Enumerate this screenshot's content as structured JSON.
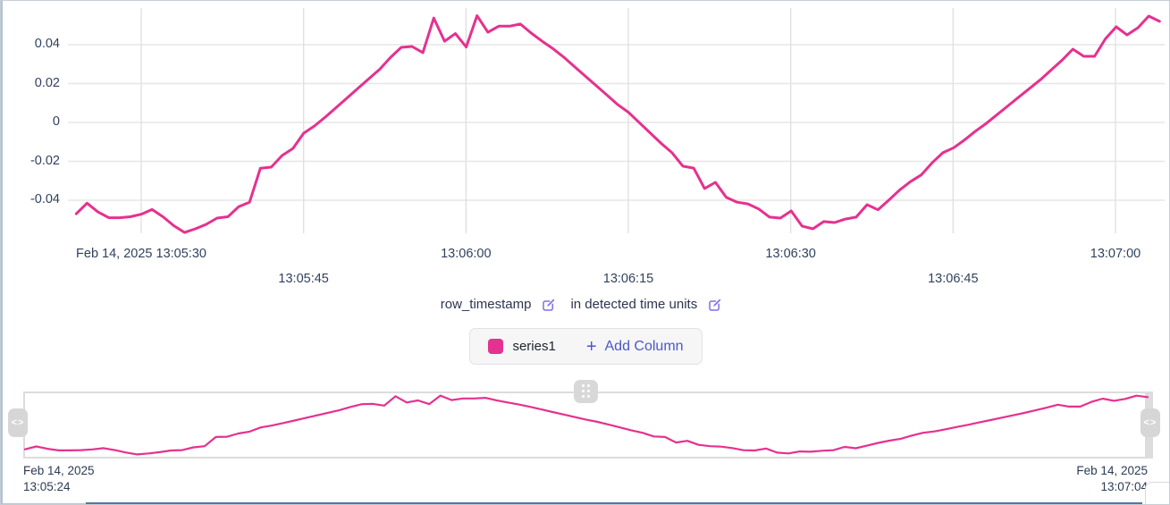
{
  "chart_data": {
    "type": "line",
    "title": "",
    "xlabel": "row_timestamp in detected time units",
    "ylabel": "",
    "x_start": "Feb 14, 2025 13:05:24",
    "x_end": "Feb 14, 2025 13:07:04",
    "x_interval_seconds": 1,
    "ylim": [
      -0.06,
      0.058
    ],
    "grid": true,
    "legend_position": "bottom",
    "series": [
      {
        "name": "series1",
        "color": "#e5318f",
        "values": [
          -0.047,
          -0.0415,
          -0.046,
          -0.049,
          -0.049,
          -0.0485,
          -0.0472,
          -0.0448,
          -0.0485,
          -0.0531,
          -0.0566,
          -0.0547,
          -0.0524,
          -0.0492,
          -0.0485,
          -0.0433,
          -0.041,
          -0.0236,
          -0.023,
          -0.017,
          -0.0134,
          -0.0055,
          -0.0018,
          0.0028,
          0.0077,
          0.0126,
          0.0175,
          0.0224,
          0.0273,
          0.0334,
          0.0386,
          0.0391,
          0.0359,
          0.0537,
          0.0418,
          0.0457,
          0.0388,
          0.0549,
          0.0464,
          0.0495,
          0.0495,
          0.0506,
          0.046,
          0.0418,
          0.038,
          0.0336,
          0.0287,
          0.0238,
          0.0189,
          0.014,
          0.0091,
          0.0051,
          -0.0002,
          -0.0055,
          -0.0108,
          -0.0156,
          -0.0225,
          -0.0235,
          -0.034,
          -0.0308,
          -0.0385,
          -0.041,
          -0.0419,
          -0.0445,
          -0.0487,
          -0.0492,
          -0.0455,
          -0.0533,
          -0.0547,
          -0.051,
          -0.0515,
          -0.0497,
          -0.0487,
          -0.0423,
          -0.0449,
          -0.04,
          -0.0348,
          -0.0305,
          -0.027,
          -0.0208,
          -0.0156,
          -0.013,
          -0.009,
          -0.0045,
          -0.0005,
          0.004,
          0.0085,
          0.013,
          0.0175,
          0.022,
          0.027,
          0.032,
          0.0377,
          0.034,
          0.034,
          0.043,
          0.0492,
          0.045,
          0.0487,
          0.0547,
          0.052
        ]
      }
    ],
    "y_ticks": [
      {
        "label": "0.04",
        "value": 0.04
      },
      {
        "label": "0.02",
        "value": 0.02
      },
      {
        "label": "0",
        "value": 0
      },
      {
        "label": "-0.02",
        "value": -0.02
      },
      {
        "label": "-0.04",
        "value": -0.04
      }
    ],
    "x_ticks": [
      {
        "label": "Feb 14, 2025 13:05:30",
        "row": 0
      },
      {
        "label": "13:05:45",
        "row": 1
      },
      {
        "label": "13:06:00",
        "row": 0
      },
      {
        "label": "13:06:15",
        "row": 1
      },
      {
        "label": "13:06:30",
        "row": 0
      },
      {
        "label": "13:06:45",
        "row": 1
      },
      {
        "label": "13:07:00",
        "row": 0
      }
    ]
  },
  "axis_title": {
    "column": "row_timestamp",
    "units_text": "in detected time units",
    "edit_icon": "edit-pencil-square"
  },
  "legend": {
    "series_label": "series1",
    "plus": "+",
    "add_column_label": "Add Column"
  },
  "navigator": {
    "start_date": "Feb 14, 2025",
    "start_time": "13:05:24",
    "end_date": "Feb 14, 2025",
    "end_time": "13:07:04",
    "left_handle_glyph": "<>",
    "right_handle_glyph": "<>"
  },
  "colors": {
    "series": "#e5318f",
    "accent_blue": "#4b57c8",
    "edit_icon_purple": "#7e6ee6",
    "tick_text": "#31415f",
    "gridline": "#e6e6e6",
    "nav_border": "#dcdcdc",
    "handle_gray": "#d6d6d6",
    "bottom_bar_blue": "#4d79a5"
  }
}
